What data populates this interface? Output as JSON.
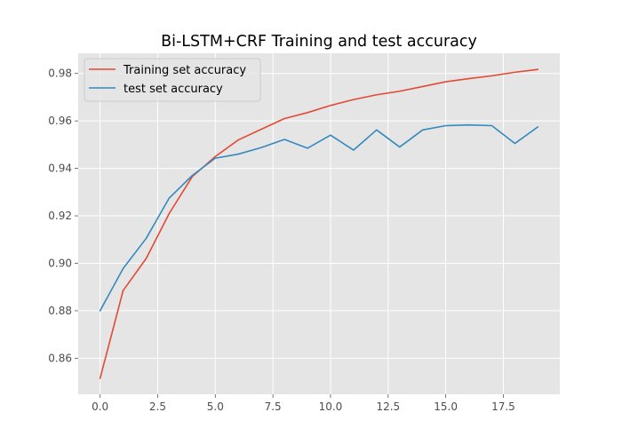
{
  "chart_data": {
    "type": "line",
    "title": "Bi-LSTM+CRF Training and test accuracy",
    "xlabel": "",
    "ylabel": "",
    "xlim": [
      -0.95,
      19.95
    ],
    "ylim": [
      0.8448,
      0.9885
    ],
    "x_ticks": [
      0,
      2.5,
      5,
      7.5,
      10,
      12.5,
      15,
      17.5
    ],
    "x_tick_labels": [
      "0.0",
      "2.5",
      "5.0",
      "7.5",
      "10.0",
      "12.5",
      "15.0",
      "17.5"
    ],
    "y_ticks": [
      0.86,
      0.88,
      0.9,
      0.92,
      0.94,
      0.96,
      0.98
    ],
    "y_tick_labels": [
      "0.86",
      "0.88",
      "0.90",
      "0.92",
      "0.94",
      "0.96",
      "0.98"
    ],
    "grid": true,
    "legend_position": "top-left",
    "x": [
      0,
      1,
      2,
      3,
      4,
      5,
      6,
      7,
      8,
      9,
      10,
      11,
      12,
      13,
      14,
      15,
      16,
      17,
      18,
      19
    ],
    "series": [
      {
        "name": "Training set accuracy",
        "color": "#e24a33",
        "values": [
          0.8515,
          0.8885,
          0.902,
          0.921,
          0.9365,
          0.945,
          0.952,
          0.9565,
          0.961,
          0.9635,
          0.9665,
          0.969,
          0.971,
          0.9725,
          0.9745,
          0.9765,
          0.9778,
          0.979,
          0.9805,
          0.9817
        ]
      },
      {
        "name": "test set accuracy",
        "color": "#348abd",
        "values": [
          0.88,
          0.8978,
          0.9105,
          0.9275,
          0.937,
          0.9443,
          0.946,
          0.9488,
          0.9522,
          0.9485,
          0.954,
          0.9477,
          0.9562,
          0.949,
          0.9562,
          0.958,
          0.9583,
          0.958,
          0.9505,
          0.9575
        ]
      }
    ],
    "colors": {
      "background": "#e5e5e5",
      "grid": "#ffffff",
      "tick": "#555555"
    }
  }
}
